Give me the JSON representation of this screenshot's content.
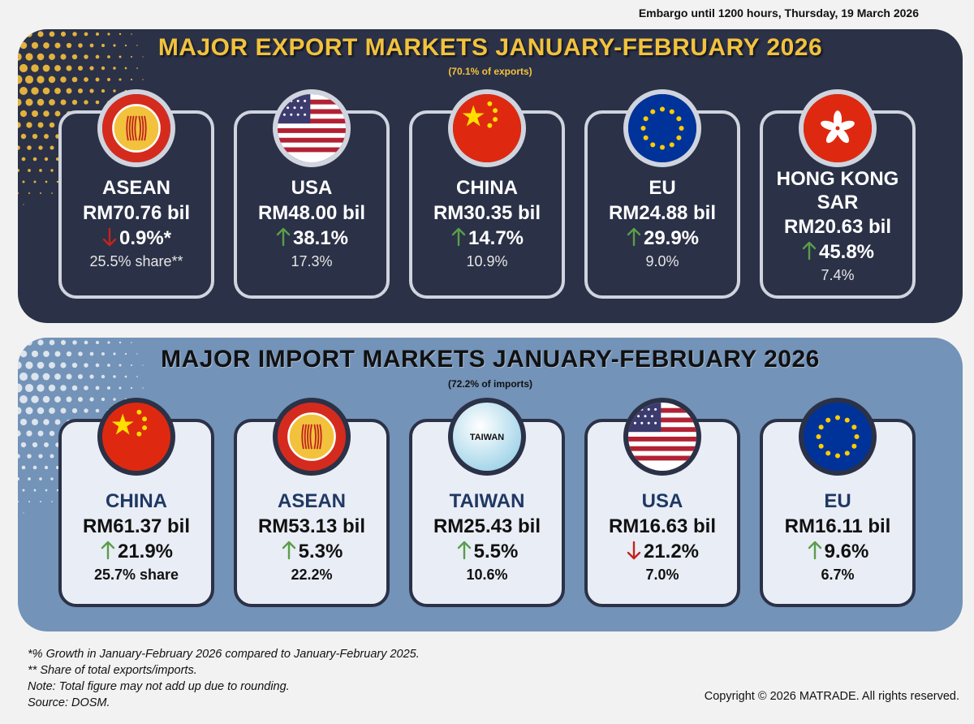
{
  "embargo": "Embargo until 1200 hours, Thursday, 19 March 2026",
  "exports": {
    "title": "MAJOR EXPORT MARKETS JANUARY-FEBRUARY 2026",
    "subtitle": "(70.1% of exports)",
    "cards": [
      {
        "name": "ASEAN",
        "value": "RM70.76 bil",
        "growth": "0.9%*",
        "direction": "down",
        "share": "25.5% share**",
        "flag": "asean-flag-icon"
      },
      {
        "name": "USA",
        "value": "RM48.00 bil",
        "growth": "38.1%",
        "direction": "up",
        "share": "17.3%",
        "flag": "usa-flag-icon"
      },
      {
        "name": "CHINA",
        "value": "RM30.35 bil",
        "growth": "14.7%",
        "direction": "up",
        "share": "10.9%",
        "flag": "china-flag-icon"
      },
      {
        "name": "EU",
        "value": "RM24.88 bil",
        "growth": "29.9%",
        "direction": "up",
        "share": "9.0%",
        "flag": "eu-flag-icon"
      },
      {
        "name_line1": "HONG KONG",
        "name_line2": "SAR",
        "value": "RM20.63 bil",
        "growth": "45.8%",
        "direction": "up",
        "share": "7.4%",
        "flag": "hong-kong-flag-icon"
      }
    ]
  },
  "imports": {
    "title": "MAJOR IMPORT MARKETS JANUARY-FEBRUARY 2026",
    "subtitle": "(72.2% of imports)",
    "cards": [
      {
        "name": "CHINA",
        "value": "RM61.37 bil",
        "growth": "21.9%",
        "direction": "up",
        "share": "25.7% share",
        "flag": "china-flag-icon"
      },
      {
        "name": "ASEAN",
        "value": "RM53.13 bil",
        "growth": "5.3%",
        "direction": "up",
        "share": "22.2%",
        "flag": "asean-flag-icon"
      },
      {
        "name": "TAIWAN",
        "value": "RM25.43 bil",
        "growth": "5.5%",
        "direction": "up",
        "share": "10.6%",
        "flag": "taiwan-badge-icon",
        "badge": "TAIWAN"
      },
      {
        "name": "USA",
        "value": "RM16.63 bil",
        "growth": "21.2%",
        "direction": "down",
        "share": "7.0%",
        "flag": "usa-flag-icon"
      },
      {
        "name": "EU",
        "value": "RM16.11 bil",
        "growth": "9.6%",
        "direction": "up",
        "share": "6.7%",
        "flag": "eu-flag-icon"
      }
    ]
  },
  "notes": [
    "*% Growth in January-February 2026 compared to January-February 2025.",
    "** Share of total exports/imports.",
    "Note: Total figure may not add up due to rounding.",
    "Source: DOSM."
  ],
  "copyright": "Copyright © 2026 MATRADE. All rights reserved.",
  "colors": {
    "export_panel": "#2b3147",
    "import_panel": "#7393b8",
    "title_gold": "#f2c23d",
    "arrow_up": "#5a9e4a",
    "arrow_down": "#c0251e"
  }
}
